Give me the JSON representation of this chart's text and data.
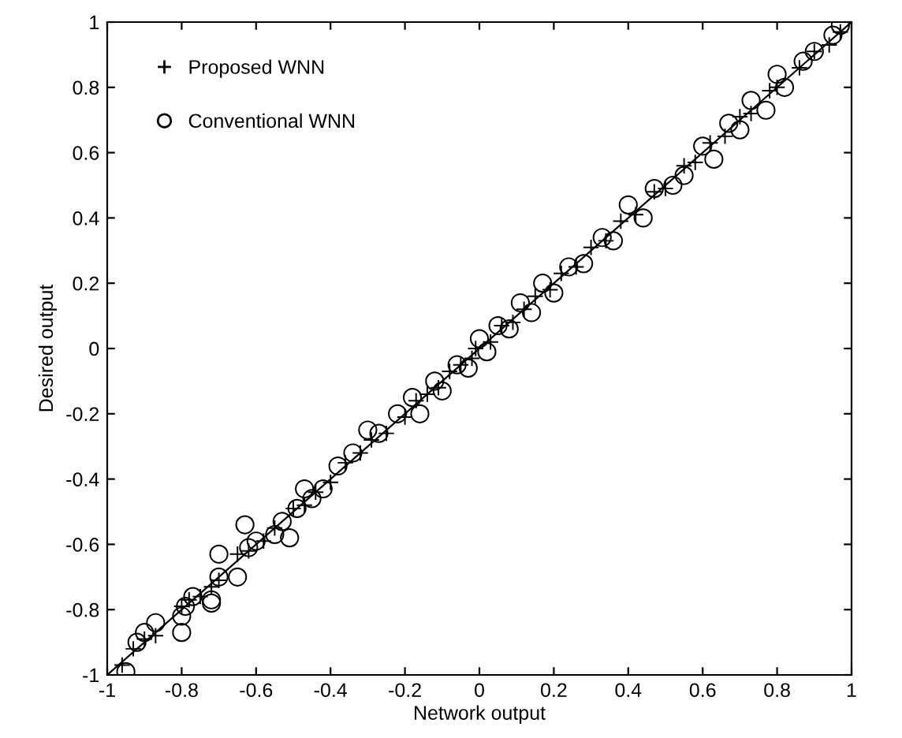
{
  "chart_data": {
    "type": "scatter",
    "xlabel": "Network output",
    "ylabel": "Desired output",
    "xlim": [
      -1,
      1
    ],
    "ylim": [
      -1,
      1
    ],
    "xticks": [
      -1,
      -0.8,
      -0.6,
      -0.4,
      -0.2,
      0,
      0.2,
      0.4,
      0.6,
      0.8,
      1
    ],
    "yticks": [
      -1,
      -0.8,
      -0.6,
      -0.4,
      -0.2,
      0,
      0.2,
      0.4,
      0.6,
      0.8,
      1
    ],
    "grid": false,
    "legend": "top left",
    "series": [
      {
        "type": "line",
        "color": "#000000",
        "marker": "none",
        "x": [
          -1,
          1
        ],
        "values": [
          -1,
          1
        ]
      },
      {
        "name": "Proposed WNN",
        "color": "#000000",
        "marker": "cross",
        "x": [
          -0.96,
          -0.93,
          -0.9,
          -0.87,
          -0.8,
          -0.78,
          -0.75,
          -0.72,
          -0.7,
          -0.65,
          -0.62,
          -0.58,
          -0.55,
          -0.5,
          -0.47,
          -0.44,
          -0.4,
          -0.36,
          -0.32,
          -0.29,
          -0.25,
          -0.2,
          -0.17,
          -0.14,
          -0.11,
          -0.08,
          -0.05,
          -0.02,
          -0.01,
          0.03,
          0.06,
          0.09,
          0.12,
          0.15,
          0.19,
          0.22,
          0.26,
          0.3,
          0.34,
          0.38,
          0.42,
          0.47,
          0.5,
          0.55,
          0.58,
          0.62,
          0.66,
          0.7,
          0.73,
          0.78,
          0.8,
          0.86,
          0.9,
          0.94,
          0.97
        ],
        "values": [
          -0.97,
          -0.92,
          -0.89,
          -0.88,
          -0.79,
          -0.77,
          -0.76,
          -0.73,
          -0.71,
          -0.63,
          -0.62,
          -0.59,
          -0.55,
          -0.49,
          -0.48,
          -0.44,
          -0.41,
          -0.35,
          -0.32,
          -0.28,
          -0.26,
          -0.21,
          -0.16,
          -0.14,
          -0.12,
          -0.07,
          -0.05,
          -0.03,
          0.0,
          0.02,
          0.07,
          0.08,
          0.12,
          0.16,
          0.18,
          0.23,
          0.25,
          0.31,
          0.33,
          0.39,
          0.41,
          0.48,
          0.49,
          0.56,
          0.57,
          0.63,
          0.65,
          0.71,
          0.72,
          0.79,
          0.8,
          0.86,
          0.91,
          0.93,
          0.97
        ]
      },
      {
        "name": "Conventional WNN",
        "color": "#000000",
        "marker": "circle",
        "x": [
          -0.95,
          -0.92,
          -0.9,
          -0.87,
          -0.8,
          -0.8,
          -0.79,
          -0.77,
          -0.72,
          -0.72,
          -0.7,
          -0.7,
          -0.65,
          -0.63,
          -0.62,
          -0.6,
          -0.55,
          -0.53,
          -0.51,
          -0.49,
          -0.47,
          -0.45,
          -0.42,
          -0.38,
          -0.34,
          -0.3,
          -0.27,
          -0.22,
          -0.18,
          -0.16,
          -0.12,
          -0.1,
          -0.06,
          -0.03,
          0.0,
          0.02,
          0.05,
          0.08,
          0.11,
          0.14,
          0.17,
          0.2,
          0.24,
          0.28,
          0.33,
          0.36,
          0.4,
          0.44,
          0.47,
          0.52,
          0.55,
          0.6,
          0.63,
          0.67,
          0.7,
          0.73,
          0.77,
          0.8,
          0.82,
          0.87,
          0.9,
          0.95,
          0.97
        ],
        "values": [
          -0.99,
          -0.9,
          -0.87,
          -0.84,
          -0.87,
          -0.82,
          -0.79,
          -0.76,
          -0.78,
          -0.77,
          -0.63,
          -0.7,
          -0.7,
          -0.54,
          -0.61,
          -0.59,
          -0.57,
          -0.53,
          -0.58,
          -0.49,
          -0.43,
          -0.46,
          -0.43,
          -0.36,
          -0.32,
          -0.25,
          -0.26,
          -0.2,
          -0.15,
          -0.2,
          -0.1,
          -0.13,
          -0.05,
          -0.06,
          0.03,
          -0.01,
          0.07,
          0.06,
          0.14,
          0.11,
          0.2,
          0.17,
          0.25,
          0.26,
          0.34,
          0.33,
          0.44,
          0.4,
          0.49,
          0.5,
          0.53,
          0.62,
          0.58,
          0.69,
          0.67,
          0.76,
          0.73,
          0.84,
          0.8,
          0.88,
          0.91,
          0.96,
          0.99
        ]
      }
    ]
  }
}
